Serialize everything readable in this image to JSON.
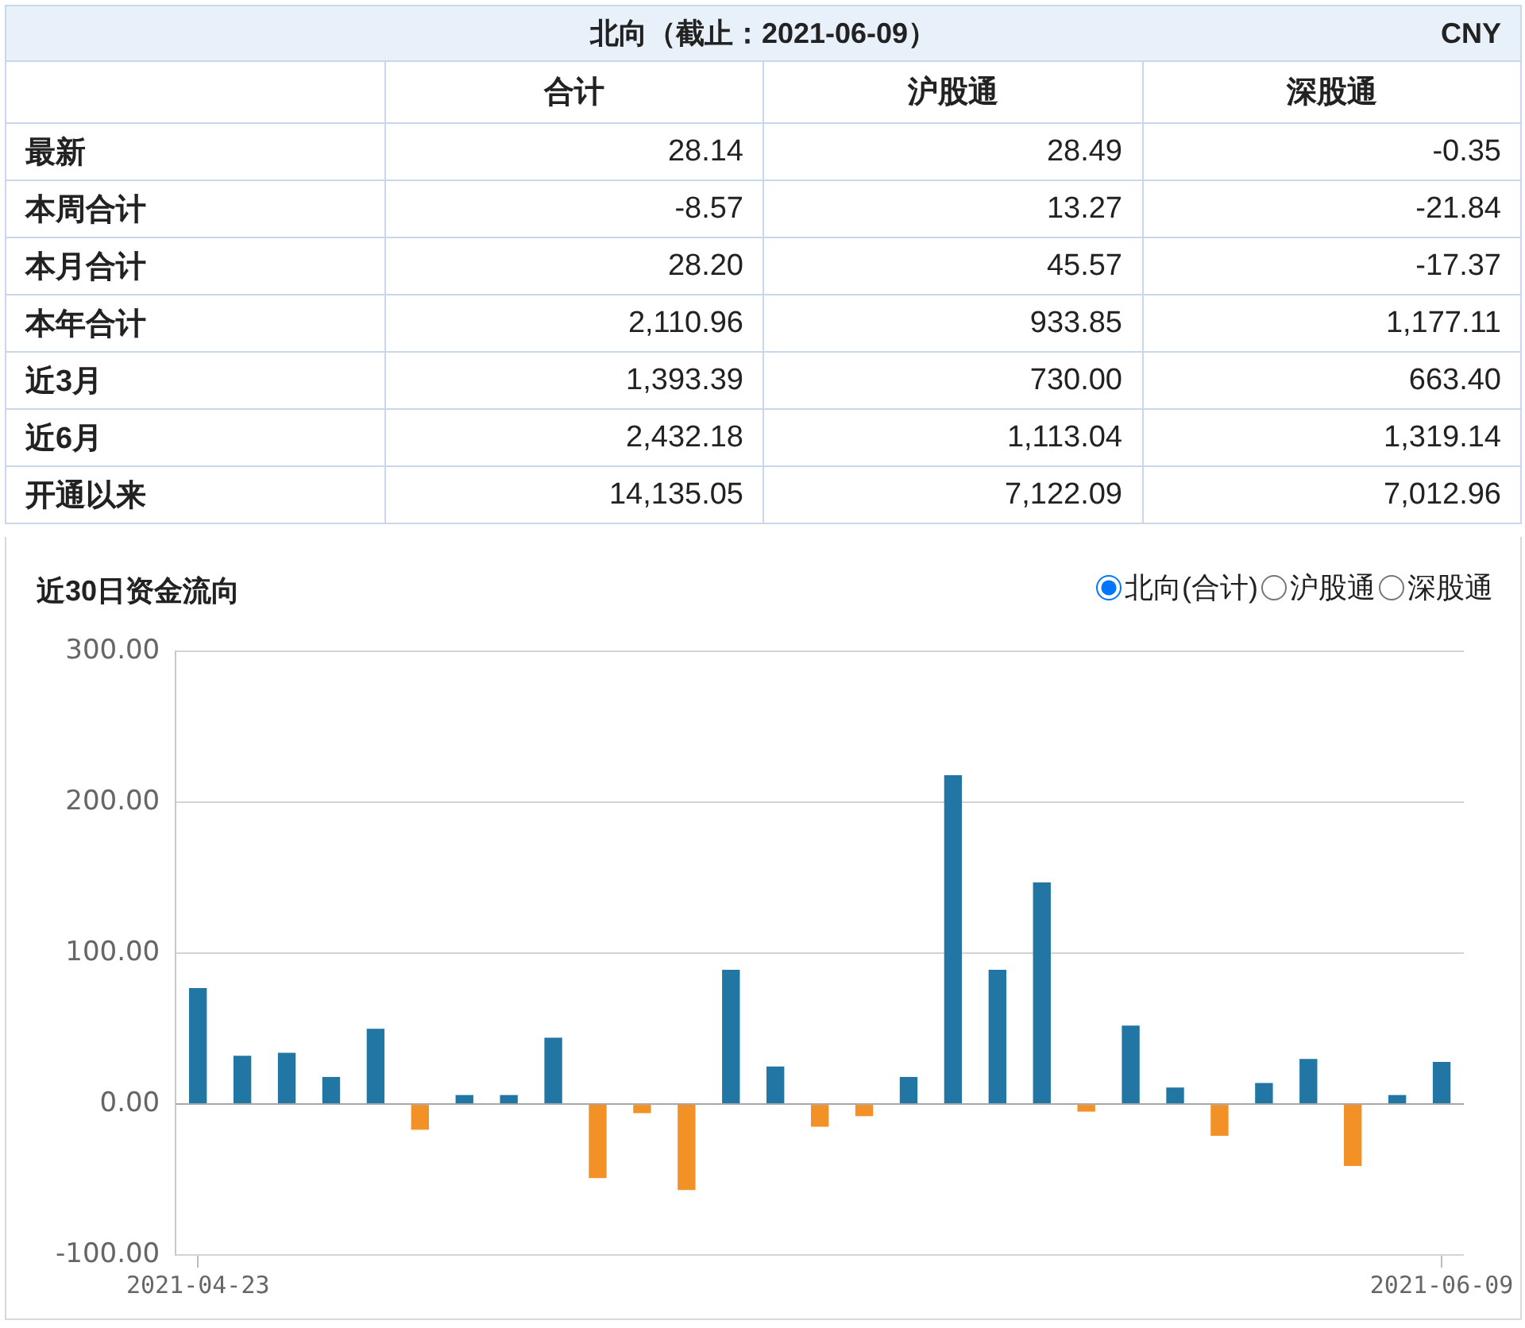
{
  "chart_data": [
    {
      "type": "other",
      "title": "北向（截止：2021-06-09）",
      "annotations": [
        "CNY"
      ],
      "categories": [
        "最新",
        "本周合计",
        "本月合计",
        "本年合计",
        "近3月",
        "近6月",
        "开通以来"
      ],
      "series": [
        {
          "name": "合计",
          "values": [
            28.14,
            -8.57,
            28.2,
            2110.96,
            1393.39,
            2432.18,
            14135.05
          ],
          "value_labels": [
            "28.14",
            "-8.57",
            "28.20",
            "2,110.96",
            "1,393.39",
            "2,432.18",
            "14,135.05"
          ]
        },
        {
          "name": "沪股通",
          "values": [
            28.49,
            13.27,
            45.57,
            933.85,
            730.0,
            1113.04,
            7122.09
          ],
          "value_labels": [
            "28.49",
            "13.27",
            "45.57",
            "933.85",
            "730.00",
            "1,113.04",
            "7,122.09"
          ]
        },
        {
          "name": "深股通",
          "values": [
            -0.35,
            -21.84,
            -17.37,
            1177.11,
            663.4,
            1319.14,
            7012.96
          ],
          "value_labels": [
            "-0.35",
            "-21.84",
            "-17.37",
            "1,177.11",
            "663.40",
            "1,319.14",
            "7,012.96"
          ]
        }
      ]
    },
    {
      "type": "bar",
      "title": "近30日资金流向",
      "annotations": [
        "北向(合计)",
        "沪股通",
        "深股通"
      ],
      "categories": [
        "2021-04-23",
        null,
        null,
        null,
        null,
        null,
        null,
        null,
        null,
        null,
        null,
        null,
        null,
        null,
        null,
        null,
        null,
        null,
        null,
        null,
        null,
        null,
        null,
        null,
        null,
        null,
        null,
        null,
        "2021-06-09"
      ],
      "values": [
        77,
        32,
        34,
        18,
        50,
        -17,
        6,
        6,
        44,
        -49,
        -6,
        -57,
        89,
        25,
        -15,
        -8,
        18,
        218,
        89,
        147,
        -5,
        52,
        11,
        -21,
        14,
        30,
        -41,
        6,
        28
      ],
      "colors": [
        "#2176a4",
        "#2176a4",
        "#2176a4",
        "#2176a4",
        "#2176a4",
        "#f29126",
        "#2176a4",
        "#2176a4",
        "#2176a4",
        "#f29126",
        "#f29126",
        "#f29126",
        "#2176a4",
        "#2176a4",
        "#f29126",
        "#f29126",
        "#2176a4",
        "#2176a4",
        "#2176a4",
        "#2176a4",
        "#f29126",
        "#2176a4",
        "#2176a4",
        "#f29126",
        "#2176a4",
        "#2176a4",
        "#f29126",
        "#2176a4",
        "#2176a4"
      ],
      "ylim": [
        -100,
        300
      ],
      "yticks": [
        {
          "value": -100,
          "label": "-100.00"
        },
        {
          "value": 0,
          "label": "0.00"
        },
        {
          "value": 100,
          "label": "100.00"
        },
        {
          "value": 200,
          "label": "200.00"
        },
        {
          "value": 300,
          "label": "300.00"
        }
      ],
      "grid": "y"
    }
  ]
}
